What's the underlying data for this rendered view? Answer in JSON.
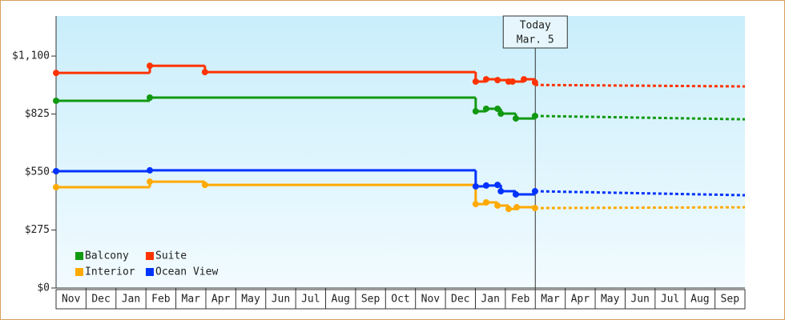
{
  "chart_data": {
    "type": "step-line",
    "categories": [
      "Nov",
      "Dec",
      "Jan",
      "Feb",
      "Mar",
      "Apr",
      "May",
      "Jun",
      "Jul",
      "Aug",
      "Sep",
      "Oct",
      "Nov",
      "Dec",
      "Jan",
      "Feb",
      "Mar",
      "Apr",
      "May",
      "Jun",
      "Jul",
      "Aug",
      "Sep"
    ],
    "xlim": [
      0,
      23
    ],
    "ylim": [
      0,
      1290
    ],
    "yticks": [
      {
        "value": 0,
        "label": "$0"
      },
      {
        "value": 275,
        "label": "$275"
      },
      {
        "value": 550,
        "label": "$550"
      },
      {
        "value": 825,
        "label": "$825"
      },
      {
        "value": 1100,
        "label": "$1,100"
      }
    ],
    "legend": "bottom-left",
    "annotation": {
      "x": 16,
      "lines": [
        "Today",
        "Mar. 5"
      ]
    },
    "series": [
      {
        "name": "Balcony",
        "color": "#119911",
        "x": [
          0,
          3.13,
          14.01,
          14.36,
          14.74,
          14.85,
          15.35,
          15.99
        ],
        "values": [
          888,
          903,
          838,
          850,
          850,
          827,
          804,
          816
        ],
        "forecast": {
          "x": [
            15.99,
            23
          ],
          "values": [
            816,
            800
          ]
        }
      },
      {
        "name": "Suite",
        "color": "#ff3300",
        "x": [
          0,
          3.13,
          4.97,
          14.01,
          14.36,
          14.74,
          15.11,
          15.24,
          15.62,
          15.99
        ],
        "values": [
          1020,
          1054,
          1024,
          979,
          990,
          986,
          979,
          979,
          990,
          975
        ],
        "forecast": {
          "x": [
            15.99,
            23
          ],
          "values": [
            963,
            956
          ]
        }
      },
      {
        "name": "Interior",
        "color": "#ffaa00",
        "x": [
          0,
          3.13,
          4.97,
          14.01,
          14.36,
          14.74,
          15.11,
          15.38,
          15.99
        ],
        "values": [
          478,
          504,
          489,
          398,
          406,
          391,
          375,
          383,
          379
        ],
        "forecast": {
          "x": [
            15.99,
            23
          ],
          "values": [
            379,
            383
          ]
        }
      },
      {
        "name": "Ocean View",
        "color": "#0033ff",
        "x": [
          0,
          3.13,
          14.01,
          14.36,
          14.74,
          14.85,
          15.35,
          15.99
        ],
        "values": [
          554,
          558,
          482,
          486,
          489,
          459,
          444,
          459
        ],
        "forecast": {
          "x": [
            15.99,
            23
          ],
          "values": [
            459,
            440
          ]
        }
      }
    ]
  }
}
